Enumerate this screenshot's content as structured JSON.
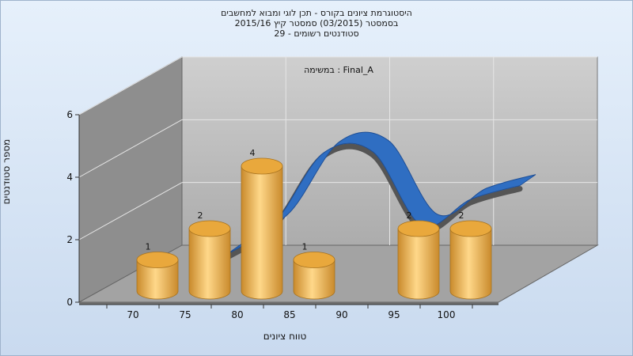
{
  "chart_data": {
    "type": "bar",
    "title_lines": [
      "היסטוגרמת ציונים בקורס - תכן לוגי ומבוא למחשבים",
      "בסמסטר  (03/2015)  סמסטר קיץ 2015/16",
      "סטודנטים רשומים - 29"
    ],
    "annotation": "במשימה : Final_A",
    "xlabel": "טווח ציונים",
    "ylabel": "מספר סטודנטים",
    "x_ticks": [
      "70",
      "75",
      "80",
      "85",
      "90",
      "95",
      "100"
    ],
    "y_ticks": [
      "0",
      "2",
      "4",
      "6"
    ],
    "ylim": [
      0,
      6
    ],
    "categories": [
      "70-75",
      "75-80",
      "80-85",
      "85-90",
      "90-95",
      "95-100",
      "100-105"
    ],
    "values": [
      1,
      2,
      4,
      1,
      0,
      2,
      2
    ],
    "curve_values": [
      1.2,
      2.2,
      4.4,
      4.4,
      2.0,
      2.8,
      3.2
    ],
    "colors": {
      "bar_light": "#ffd88a",
      "bar_dark": "#c98a2c",
      "bar_top": "#e9a83c",
      "ribbon": "#2f6ec2",
      "ribbon_dark": "#555555",
      "back_wall": "#b9b9b9",
      "side_wall": "#8e8e8e",
      "floor": "#a3a3a3",
      "grid": "#e6e6e6"
    },
    "grid": true,
    "legend": "none"
  }
}
